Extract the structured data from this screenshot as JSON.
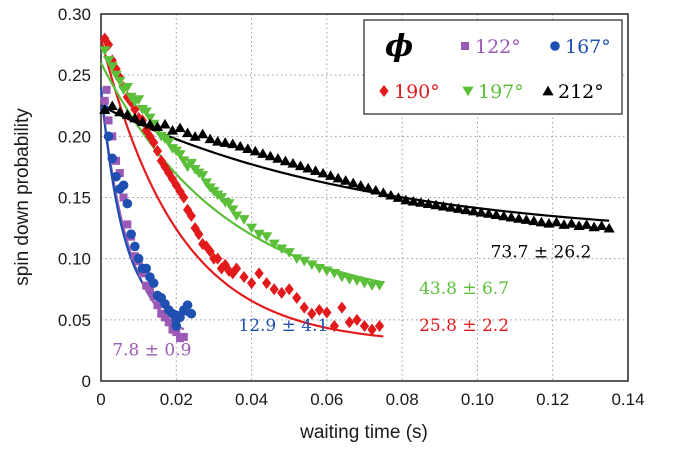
{
  "chart_data": {
    "type": "scatter",
    "title": "",
    "xlabel": "waiting time (s)",
    "ylabel": "spin down probability",
    "xlim": [
      0,
      0.14
    ],
    "ylim": [
      0,
      0.3
    ],
    "grid": true,
    "xticks": [
      "0",
      "0.02",
      "0.04",
      "0.06",
      "0.08",
      "0.10",
      "0.12",
      "0.14"
    ],
    "yticks": [
      "0",
      "0.05",
      "0.10",
      "0.15",
      "0.20",
      "0.25",
      "0.30"
    ],
    "legend": {
      "title": "ϕ",
      "position": "top-right"
    },
    "series": [
      {
        "name": "122°",
        "color": "#9b59b6",
        "marker": "square",
        "annotation": "7.8 ± 0.9",
        "annotation_at": [
          0.003,
          0.021
        ],
        "fit": {
          "A": 0.205,
          "tau": 0.0078,
          "C": 0.03,
          "xmax": 0.022
        },
        "points": [
          [
            0.001,
            0.229
          ],
          [
            0.0015,
            0.238
          ],
          [
            0.002,
            0.213
          ],
          [
            0.003,
            0.2
          ],
          [
            0.004,
            0.18
          ],
          [
            0.005,
            0.17
          ],
          [
            0.006,
            0.15
          ],
          [
            0.007,
            0.128
          ],
          [
            0.008,
            0.118
          ],
          [
            0.009,
            0.102
          ],
          [
            0.01,
            0.098
          ],
          [
            0.011,
            0.088
          ],
          [
            0.012,
            0.078
          ],
          [
            0.013,
            0.075
          ],
          [
            0.014,
            0.069
          ],
          [
            0.015,
            0.062
          ],
          [
            0.016,
            0.055
          ],
          [
            0.017,
            0.052
          ],
          [
            0.018,
            0.048
          ],
          [
            0.019,
            0.042
          ],
          [
            0.02,
            0.04
          ],
          [
            0.021,
            0.035
          ],
          [
            0.022,
            0.036
          ]
        ]
      },
      {
        "name": "167°",
        "color": "#1f4fb0",
        "marker": "circle",
        "annotation": "12.9 ± 4.1",
        "annotation_at": [
          0.0365,
          0.041
        ],
        "fit": {
          "A": 0.19,
          "tau": 0.006,
          "C": 0.05,
          "xmax": 0.024
        },
        "points": [
          [
            0.001,
            0.222
          ],
          [
            0.002,
            0.2
          ],
          [
            0.003,
            0.182
          ],
          [
            0.004,
            0.167
          ],
          [
            0.005,
            0.157
          ],
          [
            0.006,
            0.16
          ],
          [
            0.007,
            0.145
          ],
          [
            0.008,
            0.12
          ],
          [
            0.009,
            0.11
          ],
          [
            0.01,
            0.1
          ],
          [
            0.011,
            0.092
          ],
          [
            0.012,
            0.092
          ],
          [
            0.013,
            0.085
          ],
          [
            0.014,
            0.08
          ],
          [
            0.015,
            0.07
          ],
          [
            0.016,
            0.068
          ],
          [
            0.017,
            0.063
          ],
          [
            0.018,
            0.058
          ],
          [
            0.019,
            0.055
          ],
          [
            0.02,
            0.05
          ],
          [
            0.021,
            0.052
          ],
          [
            0.022,
            0.058
          ],
          [
            0.023,
            0.062
          ],
          [
            0.024,
            0.055
          ],
          [
            0.02,
            0.045
          ]
        ]
      },
      {
        "name": "190°",
        "color": "#e31a1c",
        "marker": "diamond",
        "annotation": "25.8 ± 2.2",
        "annotation_at": [
          0.0845,
          0.041
        ],
        "fit": {
          "A": 0.25,
          "tau": 0.0205,
          "C": 0.03,
          "xmax": 0.075
        },
        "points": [
          [
            0.001,
            0.28
          ],
          [
            0.002,
            0.275
          ],
          [
            0.003,
            0.262
          ],
          [
            0.004,
            0.255
          ],
          [
            0.005,
            0.248
          ],
          [
            0.006,
            0.24
          ],
          [
            0.007,
            0.232
          ],
          [
            0.008,
            0.228
          ],
          [
            0.009,
            0.222
          ],
          [
            0.01,
            0.215
          ],
          [
            0.011,
            0.213
          ],
          [
            0.012,
            0.205
          ],
          [
            0.013,
            0.2
          ],
          [
            0.014,
            0.195
          ],
          [
            0.015,
            0.188
          ],
          [
            0.016,
            0.18
          ],
          [
            0.017,
            0.175
          ],
          [
            0.018,
            0.17
          ],
          [
            0.019,
            0.165
          ],
          [
            0.02,
            0.16
          ],
          [
            0.021,
            0.155
          ],
          [
            0.022,
            0.15
          ],
          [
            0.023,
            0.14
          ],
          [
            0.024,
            0.135
          ],
          [
            0.025,
            0.125
          ],
          [
            0.026,
            0.12
          ],
          [
            0.027,
            0.112
          ],
          [
            0.028,
            0.11
          ],
          [
            0.029,
            0.106
          ],
          [
            0.03,
            0.1
          ],
          [
            0.031,
            0.1
          ],
          [
            0.032,
            0.092
          ],
          [
            0.033,
            0.095
          ],
          [
            0.034,
            0.09
          ],
          [
            0.035,
            0.088
          ],
          [
            0.036,
            0.092
          ],
          [
            0.038,
            0.085
          ],
          [
            0.04,
            0.08
          ],
          [
            0.042,
            0.088
          ],
          [
            0.044,
            0.08
          ],
          [
            0.046,
            0.075
          ],
          [
            0.048,
            0.072
          ],
          [
            0.05,
            0.075
          ],
          [
            0.052,
            0.068
          ],
          [
            0.054,
            0.06
          ],
          [
            0.056,
            0.055
          ],
          [
            0.058,
            0.058
          ],
          [
            0.06,
            0.056
          ],
          [
            0.062,
            0.045
          ],
          [
            0.064,
            0.06
          ],
          [
            0.066,
            0.048
          ],
          [
            0.068,
            0.05
          ],
          [
            0.07,
            0.045
          ],
          [
            0.072,
            0.042
          ],
          [
            0.074,
            0.045
          ]
        ]
      },
      {
        "name": "197°",
        "color": "#5cbf3a",
        "marker": "triangle-down",
        "annotation": "43.8 ± 6.7",
        "annotation_at": [
          0.0845,
          0.071
        ],
        "fit": {
          "A": 0.2,
          "tau": 0.033,
          "C": 0.06,
          "xmax": 0.075
        },
        "points": [
          [
            0.001,
            0.27
          ],
          [
            0.002,
            0.262
          ],
          [
            0.003,
            0.257
          ],
          [
            0.004,
            0.25
          ],
          [
            0.005,
            0.245
          ],
          [
            0.006,
            0.238
          ],
          [
            0.007,
            0.24
          ],
          [
            0.008,
            0.232
          ],
          [
            0.009,
            0.228
          ],
          [
            0.01,
            0.23
          ],
          [
            0.011,
            0.222
          ],
          [
            0.012,
            0.22
          ],
          [
            0.013,
            0.215
          ],
          [
            0.014,
            0.21
          ],
          [
            0.015,
            0.205
          ],
          [
            0.016,
            0.2
          ],
          [
            0.017,
            0.198
          ],
          [
            0.018,
            0.195
          ],
          [
            0.019,
            0.19
          ],
          [
            0.02,
            0.188
          ],
          [
            0.021,
            0.185
          ],
          [
            0.022,
            0.18
          ],
          [
            0.023,
            0.175
          ],
          [
            0.024,
            0.178
          ],
          [
            0.025,
            0.173
          ],
          [
            0.026,
            0.17
          ],
          [
            0.027,
            0.168
          ],
          [
            0.028,
            0.162
          ],
          [
            0.029,
            0.158
          ],
          [
            0.03,
            0.155
          ],
          [
            0.031,
            0.152
          ],
          [
            0.032,
            0.15
          ],
          [
            0.033,
            0.146
          ],
          [
            0.034,
            0.145
          ],
          [
            0.035,
            0.14
          ],
          [
            0.036,
            0.135
          ],
          [
            0.038,
            0.132
          ],
          [
            0.04,
            0.125
          ],
          [
            0.042,
            0.12
          ],
          [
            0.044,
            0.118
          ],
          [
            0.046,
            0.112
          ],
          [
            0.048,
            0.108
          ],
          [
            0.05,
            0.105
          ],
          [
            0.052,
            0.1
          ],
          [
            0.054,
            0.098
          ],
          [
            0.056,
            0.095
          ],
          [
            0.058,
            0.092
          ],
          [
            0.06,
            0.09
          ],
          [
            0.062,
            0.088
          ],
          [
            0.064,
            0.085
          ],
          [
            0.066,
            0.083
          ],
          [
            0.068,
            0.082
          ],
          [
            0.07,
            0.08
          ],
          [
            0.072,
            0.078
          ],
          [
            0.074,
            0.078
          ]
        ]
      },
      {
        "name": "212°",
        "color": "#000000",
        "marker": "triangle-up",
        "annotation": "73.7 ± 26.2",
        "annotation_at": [
          0.1035,
          0.101
        ],
        "fit": {
          "A": 0.11,
          "tau": 0.07,
          "C": 0.115,
          "xmax": 0.135
        },
        "points": [
          [
            0.001,
            0.222
          ],
          [
            0.003,
            0.225
          ],
          [
            0.005,
            0.22
          ],
          [
            0.007,
            0.218
          ],
          [
            0.009,
            0.215
          ],
          [
            0.011,
            0.212
          ],
          [
            0.013,
            0.21
          ],
          [
            0.015,
            0.208
          ],
          [
            0.017,
            0.21
          ],
          [
            0.019,
            0.205
          ],
          [
            0.021,
            0.207
          ],
          [
            0.023,
            0.203
          ],
          [
            0.025,
            0.2
          ],
          [
            0.027,
            0.202
          ],
          [
            0.029,
            0.198
          ],
          [
            0.031,
            0.196
          ],
          [
            0.033,
            0.195
          ],
          [
            0.035,
            0.194
          ],
          [
            0.037,
            0.192
          ],
          [
            0.039,
            0.19
          ],
          [
            0.041,
            0.188
          ],
          [
            0.043,
            0.186
          ],
          [
            0.045,
            0.184
          ],
          [
            0.047,
            0.182
          ],
          [
            0.049,
            0.18
          ],
          [
            0.051,
            0.178
          ],
          [
            0.053,
            0.176
          ],
          [
            0.055,
            0.174
          ],
          [
            0.057,
            0.172
          ],
          [
            0.059,
            0.17
          ],
          [
            0.061,
            0.168
          ],
          [
            0.063,
            0.166
          ],
          [
            0.065,
            0.164
          ],
          [
            0.067,
            0.162
          ],
          [
            0.069,
            0.16
          ],
          [
            0.071,
            0.158
          ],
          [
            0.073,
            0.156
          ],
          [
            0.075,
            0.154
          ],
          [
            0.077,
            0.152
          ],
          [
            0.079,
            0.15
          ],
          [
            0.081,
            0.148
          ],
          [
            0.083,
            0.147
          ],
          [
            0.085,
            0.146
          ],
          [
            0.087,
            0.145
          ],
          [
            0.089,
            0.144
          ],
          [
            0.091,
            0.143
          ],
          [
            0.093,
            0.142
          ],
          [
            0.095,
            0.141
          ],
          [
            0.097,
            0.14
          ],
          [
            0.099,
            0.139
          ],
          [
            0.101,
            0.138
          ],
          [
            0.103,
            0.137
          ],
          [
            0.105,
            0.136
          ],
          [
            0.107,
            0.135
          ],
          [
            0.109,
            0.134
          ],
          [
            0.111,
            0.133
          ],
          [
            0.113,
            0.132
          ],
          [
            0.115,
            0.131
          ],
          [
            0.117,
            0.13
          ],
          [
            0.119,
            0.129
          ],
          [
            0.121,
            0.13
          ],
          [
            0.123,
            0.128
          ],
          [
            0.125,
            0.129
          ],
          [
            0.127,
            0.127
          ],
          [
            0.129,
            0.128
          ],
          [
            0.131,
            0.126
          ],
          [
            0.133,
            0.127
          ],
          [
            0.135,
            0.125
          ]
        ]
      }
    ]
  }
}
